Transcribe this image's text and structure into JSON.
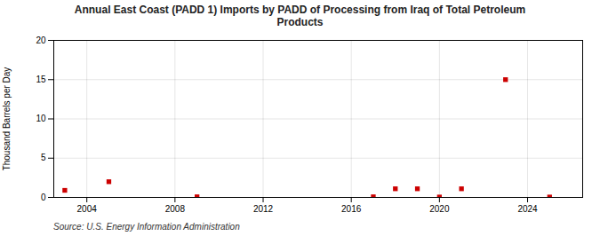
{
  "chart_data": {
    "type": "scatter",
    "title": "Annual East Coast (PADD 1) Imports by PADD of Processing from Iraq of Total Petroleum\nProducts",
    "ylabel": "Thousand Barrels per Day",
    "annotations": [
      "Source: U.S. Energy Information Administration"
    ],
    "x": [
      2003,
      2005,
      2009,
      2017,
      2018,
      2019,
      2020,
      2021,
      2023,
      2025
    ],
    "values": [
      0.9,
      2.0,
      0.08,
      0.08,
      1.1,
      1.1,
      0.05,
      1.1,
      15.0,
      0.05
    ],
    "color": "#cc0000",
    "marker": "square",
    "xlim": [
      2002.5,
      2026.5
    ],
    "ylim": [
      0,
      20
    ],
    "xticks": [
      2004,
      2008,
      2012,
      2016,
      2020,
      2024
    ],
    "yticks": [
      0,
      5,
      10,
      15,
      20
    ],
    "grid": true
  }
}
